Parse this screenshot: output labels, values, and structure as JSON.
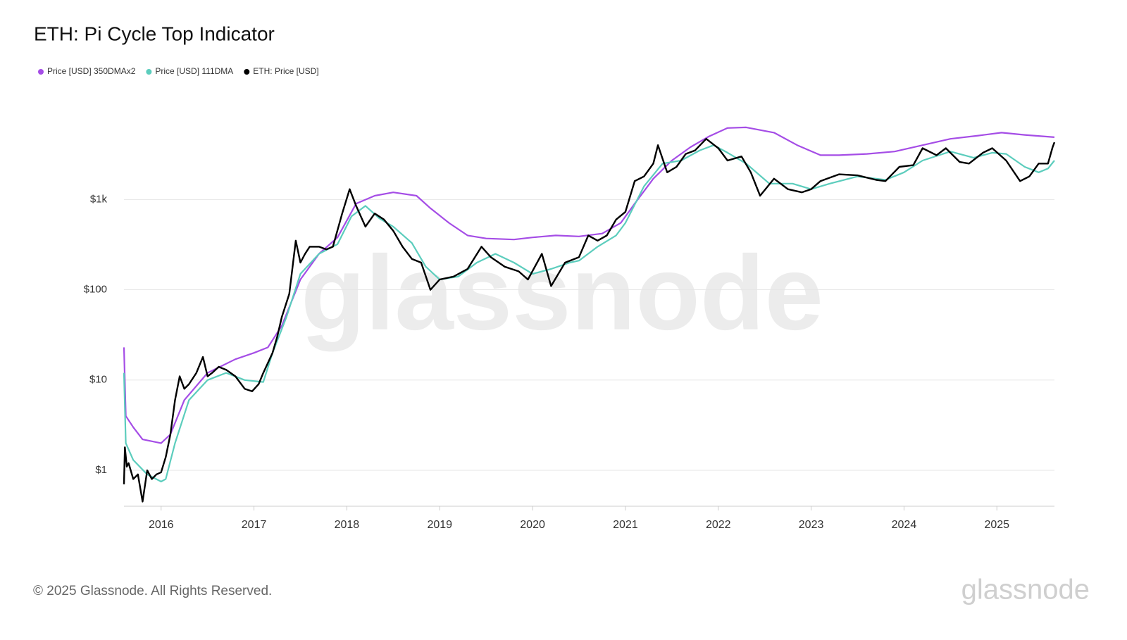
{
  "chart_data": {
    "type": "line",
    "title": "ETH: Pi Cycle Top Indicator",
    "watermark": "glassnode",
    "footer": "© 2025 Glassnode. All Rights Reserved.",
    "logo": "glassnode",
    "log_scale": true,
    "grid": true,
    "legend": "top-left",
    "xlim": [
      2015.6,
      2025.62
    ],
    "xticks": [
      2016,
      2017,
      2018,
      2019,
      2020,
      2021,
      2022,
      2023,
      2024,
      2025
    ],
    "ylim": [
      0.4,
      7000
    ],
    "yticks": [
      {
        "value": 1,
        "label": "$1"
      },
      {
        "value": 10,
        "label": "$10"
      },
      {
        "value": 100,
        "label": "$100"
      },
      {
        "value": 1000,
        "label": "$1k"
      }
    ],
    "series": [
      {
        "name": "Price [USD] 350DMAx2",
        "color": "#a54de6",
        "x": [
          2015.6,
          2015.62,
          2015.7,
          2015.8,
          2016.0,
          2016.1,
          2016.25,
          2016.5,
          2016.8,
          2017.0,
          2017.15,
          2017.3,
          2017.5,
          2017.7,
          2017.9,
          2018.1,
          2018.3,
          2018.5,
          2018.75,
          2018.9,
          2019.1,
          2019.3,
          2019.5,
          2019.8,
          2020.0,
          2020.25,
          2020.5,
          2020.75,
          2020.95,
          2021.1,
          2021.3,
          2021.5,
          2021.7,
          2021.9,
          2022.1,
          2022.3,
          2022.6,
          2022.85,
          2023.1,
          2023.3,
          2023.6,
          2023.9,
          2024.2,
          2024.5,
          2024.8,
          2025.05,
          2025.3,
          2025.62
        ],
        "values": [
          23,
          4,
          3,
          2.2,
          2.0,
          2.5,
          6,
          12,
          17,
          20,
          23,
          40,
          130,
          250,
          380,
          900,
          1100,
          1200,
          1100,
          800,
          550,
          400,
          370,
          360,
          380,
          400,
          390,
          420,
          550,
          900,
          1700,
          2700,
          3800,
          5000,
          6200,
          6300,
          5500,
          4000,
          3100,
          3100,
          3200,
          3400,
          4000,
          4700,
          5100,
          5500,
          5200,
          4900
        ]
      },
      {
        "name": "Price [USD] 111DMA",
        "color": "#5ccdbd",
        "x": [
          2015.6,
          2015.62,
          2015.7,
          2015.85,
          2016.0,
          2016.05,
          2016.15,
          2016.3,
          2016.5,
          2016.7,
          2016.9,
          2017.1,
          2017.2,
          2017.35,
          2017.5,
          2017.7,
          2017.9,
          2018.05,
          2018.2,
          2018.35,
          2018.5,
          2018.7,
          2018.85,
          2019.0,
          2019.2,
          2019.4,
          2019.6,
          2019.8,
          2020.0,
          2020.2,
          2020.4,
          2020.5,
          2020.7,
          2020.9,
          2021.0,
          2021.2,
          2021.4,
          2021.6,
          2021.8,
          2021.95,
          2022.1,
          2022.3,
          2022.55,
          2022.8,
          2023.0,
          2023.2,
          2023.5,
          2023.8,
          2024.0,
          2024.2,
          2024.5,
          2024.75,
          2024.95,
          2025.1,
          2025.3,
          2025.45,
          2025.55,
          2025.62
        ],
        "values": [
          12,
          2.0,
          1.3,
          0.9,
          0.75,
          0.8,
          2,
          6,
          10,
          12,
          10,
          9.5,
          20,
          50,
          150,
          250,
          320,
          650,
          850,
          620,
          500,
          330,
          180,
          130,
          140,
          200,
          250,
          200,
          150,
          170,
          200,
          210,
          300,
          400,
          550,
          1400,
          2500,
          2700,
          3500,
          4000,
          3300,
          2500,
          1500,
          1500,
          1300,
          1500,
          1800,
          1650,
          2000,
          2700,
          3400,
          2900,
          3300,
          3200,
          2300,
          2000,
          2200,
          2700
        ]
      },
      {
        "name": "ETH: Price [USD]",
        "color": "#000000",
        "x": [
          2015.6,
          2015.61,
          2015.63,
          2015.65,
          2015.7,
          2015.75,
          2015.8,
          2015.85,
          2015.9,
          2015.95,
          2016.0,
          2016.05,
          2016.1,
          2016.15,
          2016.2,
          2016.25,
          2016.3,
          2016.38,
          2016.45,
          2016.5,
          2016.55,
          2016.62,
          2016.7,
          2016.8,
          2016.9,
          2016.98,
          2017.05,
          2017.1,
          2017.2,
          2017.25,
          2017.3,
          2017.38,
          2017.45,
          2017.5,
          2017.55,
          2017.6,
          2017.7,
          2017.78,
          2017.85,
          2017.95,
          2018.03,
          2018.1,
          2018.2,
          2018.3,
          2018.4,
          2018.5,
          2018.6,
          2018.7,
          2018.8,
          2018.9,
          2019.0,
          2019.15,
          2019.3,
          2019.45,
          2019.55,
          2019.7,
          2019.85,
          2019.95,
          2020.1,
          2020.2,
          2020.35,
          2020.5,
          2020.6,
          2020.7,
          2020.8,
          2020.9,
          2021.0,
          2021.1,
          2021.2,
          2021.3,
          2021.35,
          2021.45,
          2021.55,
          2021.65,
          2021.75,
          2021.87,
          2022.0,
          2022.1,
          2022.25,
          2022.35,
          2022.45,
          2022.6,
          2022.75,
          2022.9,
          2023.0,
          2023.1,
          2023.3,
          2023.5,
          2023.7,
          2023.8,
          2023.95,
          2024.1,
          2024.2,
          2024.35,
          2024.45,
          2024.6,
          2024.7,
          2024.85,
          2024.95,
          2025.1,
          2025.25,
          2025.35,
          2025.45,
          2025.55,
          2025.6,
          2025.62
        ],
        "values": [
          0.7,
          1.8,
          1.1,
          1.2,
          0.8,
          0.9,
          0.45,
          1.0,
          0.8,
          0.9,
          0.95,
          1.4,
          2.5,
          6,
          11,
          8,
          9,
          12,
          18,
          11,
          12,
          14,
          13,
          11,
          8,
          7.5,
          9,
          12,
          20,
          30,
          50,
          90,
          350,
          200,
          250,
          300,
          300,
          280,
          300,
          700,
          1300,
          850,
          500,
          700,
          600,
          450,
          300,
          220,
          200,
          100,
          130,
          140,
          170,
          300,
          230,
          180,
          160,
          130,
          250,
          110,
          200,
          230,
          400,
          350,
          400,
          600,
          730,
          1600,
          1800,
          2500,
          4000,
          2000,
          2300,
          3200,
          3500,
          4700,
          3700,
          2700,
          3000,
          2000,
          1100,
          1700,
          1300,
          1200,
          1300,
          1600,
          1900,
          1850,
          1650,
          1600,
          2300,
          2400,
          3700,
          3100,
          3700,
          2600,
          2500,
          3300,
          3700,
          2700,
          1600,
          1800,
          2500,
          2500,
          3800,
          4300
        ]
      }
    ]
  }
}
